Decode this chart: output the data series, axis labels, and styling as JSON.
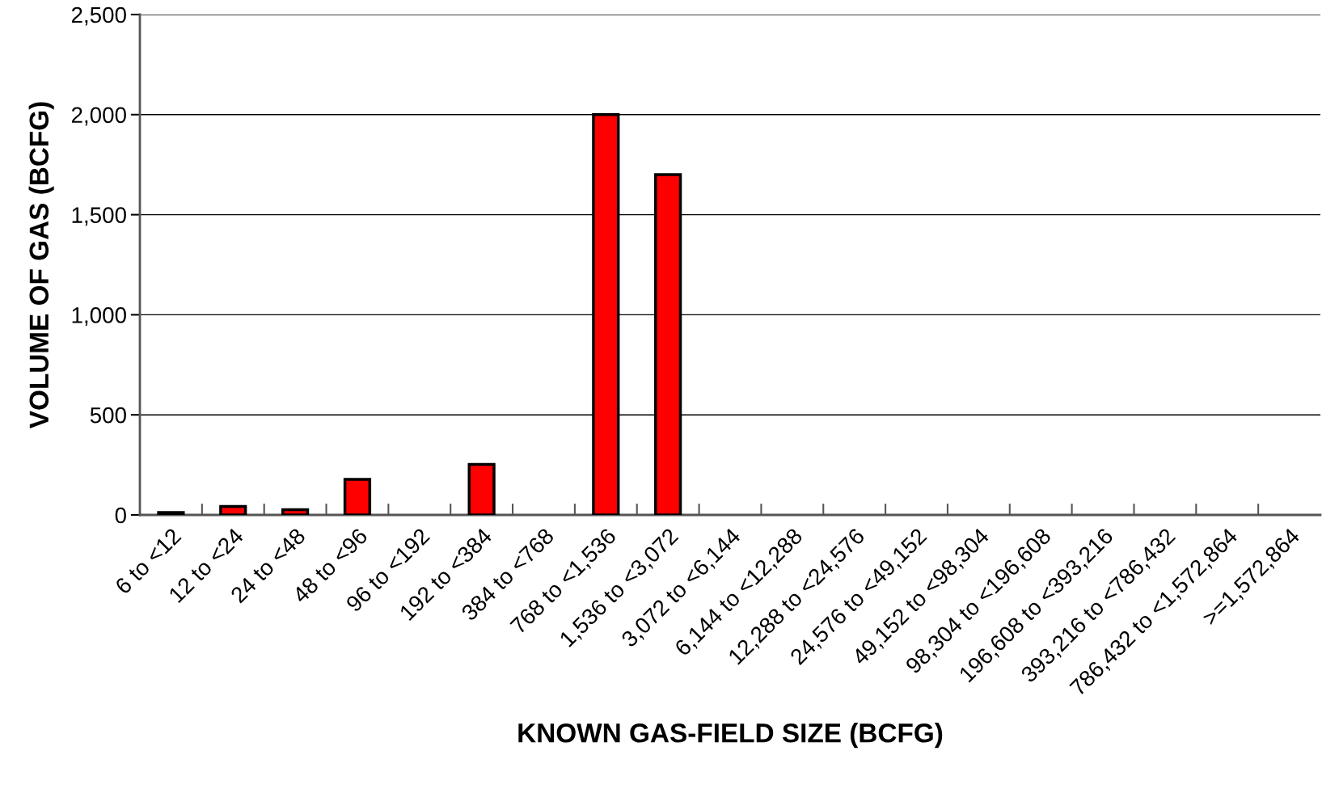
{
  "chart_data": {
    "type": "bar",
    "xlabel": "KNOWN GAS-FIELD SIZE (BCFG)",
    "ylabel": "VOLUME OF GAS (BCFG)",
    "categories": [
      "6 to <12",
      "12 to <24",
      "24 to <48",
      "48 to <96",
      "96 to <192",
      "192 to <384",
      "384 to <768",
      "768 to <1,536",
      "1,536 to <3,072",
      "3,072 to <6,144",
      "6,144 to <12,288",
      "12,288 to <24,576",
      "24,576 to <49,152",
      "49,152 to <98,304",
      "98,304 to <196,608",
      "196,608 to <393,216",
      "393,216 to <786,432",
      "786,432 to <1,572,864",
      ">=1,572,864"
    ],
    "values": [
      12,
      42,
      26,
      178,
      0,
      252,
      0,
      2000,
      1700,
      0,
      0,
      0,
      0,
      0,
      0,
      0,
      0,
      0,
      0
    ],
    "color": "#ff0000",
    "ylim": [
      0,
      2500
    ],
    "yticks": [
      {
        "value": 0,
        "label": "0"
      },
      {
        "value": 500,
        "label": "500"
      },
      {
        "value": 1000,
        "label": "1,000"
      },
      {
        "value": 1500,
        "label": "1,500"
      },
      {
        "value": 2000,
        "label": "2,000"
      },
      {
        "value": 2500,
        "label": "2,500"
      }
    ],
    "grid": "y",
    "legend": false
  }
}
